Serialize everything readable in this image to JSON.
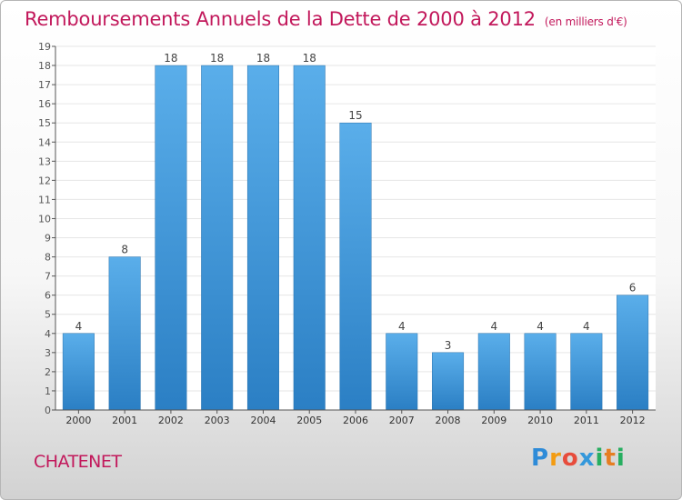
{
  "title": "Remboursements Annuels de la Dette de 2000 à 2012",
  "subtitle": "(en milliers d'€)",
  "commune": "CHATENET",
  "logo": {
    "letters": [
      "P",
      "r",
      "o",
      "x",
      "i",
      "t",
      "i"
    ],
    "colors": [
      "#2e8bd8",
      "#f39c12",
      "#e74c3c",
      "#3498db",
      "#27ae60",
      "#e67e22",
      "#27ae60"
    ]
  },
  "chart_data": {
    "type": "bar",
    "categories": [
      "2000",
      "2001",
      "2002",
      "2003",
      "2004",
      "2005",
      "2006",
      "2007",
      "2008",
      "2009",
      "2010",
      "2011",
      "2012"
    ],
    "values": [
      4,
      8,
      18,
      18,
      18,
      18,
      15,
      4,
      3,
      4,
      4,
      4,
      6
    ],
    "ylim": [
      0,
      19
    ],
    "yticks": [
      "0",
      "1",
      "2",
      "3",
      "4",
      "5",
      "6",
      "7",
      "8",
      "9",
      "10",
      "11",
      "12",
      "13",
      "14",
      "15",
      "16",
      "17",
      "18",
      "19"
    ],
    "xlabel": "",
    "ylabel": "",
    "grid": true,
    "bar_color": "#3a8fd6"
  }
}
